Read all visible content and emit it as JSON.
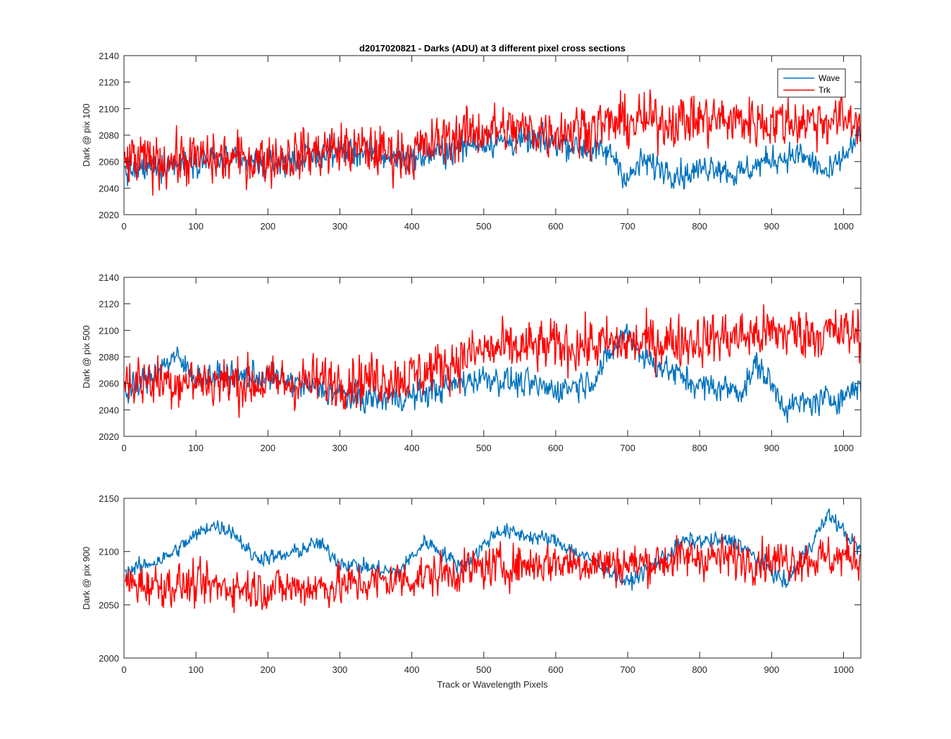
{
  "figure": {
    "title": "d2017020821 - Darks (ADU) at 3 different pixel cross sections",
    "xlabel": "Track or Wavelength Pixels"
  },
  "chart_data": [
    {
      "type": "line",
      "title": "d2017020821 - Darks (ADU) at 3 different pixel cross sections",
      "ylabel": "Dark @ pix 100",
      "xlabel": "",
      "xlim": [
        0,
        1024
      ],
      "ylim": [
        2020,
        2140
      ],
      "xticks": [
        0,
        100,
        200,
        300,
        400,
        500,
        600,
        700,
        800,
        900,
        1000
      ],
      "yticks": [
        2020,
        2040,
        2060,
        2080,
        2100,
        2120,
        2140
      ],
      "legend": {
        "placement": "top-right",
        "entries": [
          "Wave",
          "Trk"
        ]
      },
      "series": [
        {
          "name": "Wave",
          "color": "#0072BD",
          "noise": 7,
          "trend": [
            [
              0,
              2052
            ],
            [
              100,
              2062
            ],
            [
              200,
              2058
            ],
            [
              300,
              2068
            ],
            [
              400,
              2062
            ],
            [
              500,
              2075
            ],
            [
              600,
              2075
            ],
            [
              680,
              2065
            ],
            [
              700,
              2046
            ],
            [
              720,
              2060
            ],
            [
              780,
              2050
            ],
            [
              820,
              2058
            ],
            [
              850,
              2050
            ],
            [
              900,
              2062
            ],
            [
              940,
              2065
            ],
            [
              980,
              2050
            ],
            [
              1024,
              2080
            ]
          ]
        },
        {
          "name": "Trk",
          "color": "#FF0000",
          "noise": 13,
          "trend": [
            [
              0,
              2060
            ],
            [
              100,
              2062
            ],
            [
              200,
              2062
            ],
            [
              300,
              2070
            ],
            [
              400,
              2066
            ],
            [
              450,
              2078
            ],
            [
              500,
              2084
            ],
            [
              600,
              2083
            ],
            [
              700,
              2090
            ],
            [
              800,
              2092
            ],
            [
              900,
              2090
            ],
            [
              1024,
              2092
            ]
          ]
        }
      ]
    },
    {
      "type": "line",
      "ylabel": "Dark @ pix 500",
      "xlabel": "",
      "xlim": [
        0,
        1024
      ],
      "ylim": [
        2020,
        2140
      ],
      "xticks": [
        0,
        100,
        200,
        300,
        400,
        500,
        600,
        700,
        800,
        900,
        1000
      ],
      "yticks": [
        2020,
        2040,
        2060,
        2080,
        2100,
        2120,
        2140
      ],
      "series": [
        {
          "name": "Wave",
          "color": "#0072BD",
          "noise": 7,
          "trend": [
            [
              0,
              2050
            ],
            [
              70,
              2080
            ],
            [
              100,
              2065
            ],
            [
              200,
              2065
            ],
            [
              330,
              2048
            ],
            [
              400,
              2050
            ],
            [
              500,
              2065
            ],
            [
              600,
              2055
            ],
            [
              650,
              2062
            ],
            [
              700,
              2100
            ],
            [
              720,
              2080
            ],
            [
              800,
              2058
            ],
            [
              860,
              2055
            ],
            [
              880,
              2075
            ],
            [
              920,
              2042
            ],
            [
              1000,
              2050
            ],
            [
              1024,
              2060
            ]
          ]
        },
        {
          "name": "Trk",
          "color": "#FF0000",
          "noise": 13,
          "trend": [
            [
              0,
              2062
            ],
            [
              100,
              2062
            ],
            [
              200,
              2060
            ],
            [
              300,
              2062
            ],
            [
              400,
              2065
            ],
            [
              500,
              2085
            ],
            [
              600,
              2088
            ],
            [
              700,
              2090
            ],
            [
              800,
              2093
            ],
            [
              900,
              2098
            ],
            [
              1024,
              2098
            ]
          ]
        }
      ]
    },
    {
      "type": "line",
      "ylabel": "Dark @ pix 900",
      "xlabel": "Track or Wavelength Pixels",
      "xlim": [
        0,
        1024
      ],
      "ylim": [
        2000,
        2150
      ],
      "xticks": [
        0,
        100,
        200,
        300,
        400,
        500,
        600,
        700,
        800,
        900,
        1000
      ],
      "yticks": [
        2000,
        2050,
        2100,
        2150
      ],
      "series": [
        {
          "name": "Wave",
          "color": "#0072BD",
          "noise": 5,
          "trend": [
            [
              0,
              2080
            ],
            [
              60,
              2095
            ],
            [
              120,
              2125
            ],
            [
              150,
              2120
            ],
            [
              180,
              2095
            ],
            [
              220,
              2095
            ],
            [
              270,
              2108
            ],
            [
              300,
              2090
            ],
            [
              380,
              2080
            ],
            [
              420,
              2110
            ],
            [
              470,
              2085
            ],
            [
              520,
              2120
            ],
            [
              600,
              2110
            ],
            [
              680,
              2080
            ],
            [
              700,
              2070
            ],
            [
              780,
              2110
            ],
            [
              850,
              2110
            ],
            [
              920,
              2070
            ],
            [
              980,
              2135
            ],
            [
              1024,
              2100
            ]
          ]
        },
        {
          "name": "Trk",
          "color": "#FF0000",
          "noise": 13,
          "trend": [
            [
              0,
              2070
            ],
            [
              100,
              2068
            ],
            [
              200,
              2065
            ],
            [
              300,
              2068
            ],
            [
              400,
              2075
            ],
            [
              500,
              2085
            ],
            [
              600,
              2090
            ],
            [
              700,
              2088
            ],
            [
              800,
              2095
            ],
            [
              900,
              2092
            ],
            [
              1024,
              2095
            ]
          ]
        }
      ]
    }
  ]
}
